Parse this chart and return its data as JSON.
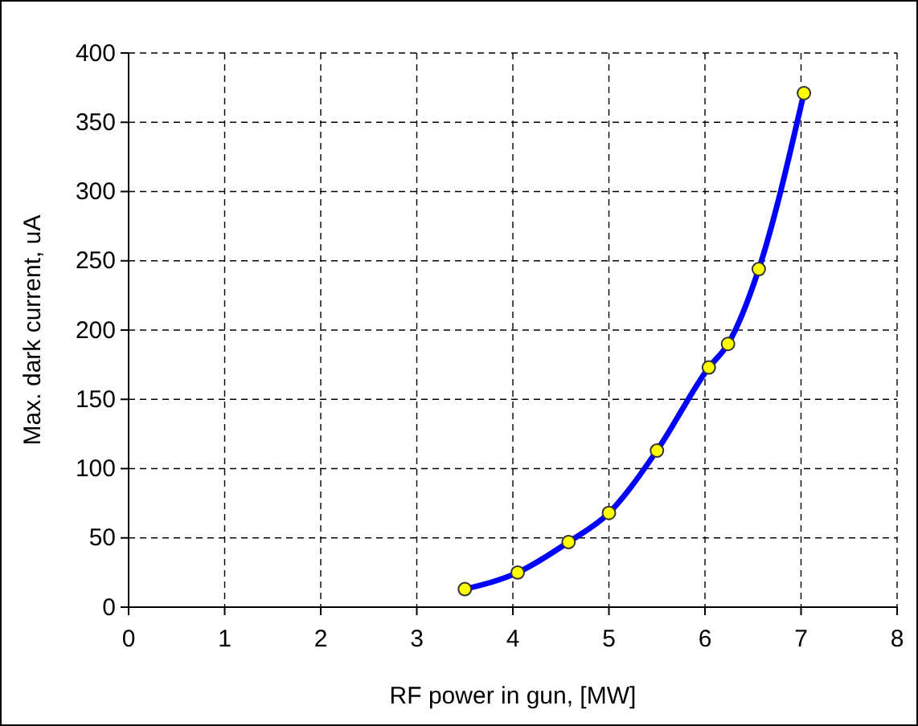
{
  "chart_data": {
    "type": "line",
    "xlabel": "RF power in gun, [MW]",
    "ylabel": "Max. dark current, uA",
    "x": [
      3.5,
      4.05,
      4.58,
      5.0,
      5.5,
      6.04,
      6.24,
      6.56,
      7.03
    ],
    "series": [
      {
        "color": "#0000ff",
        "values": [
          13,
          25,
          47,
          68,
          113,
          173,
          190,
          244,
          371
        ]
      }
    ],
    "xlim": [
      0,
      8
    ],
    "xticks": [
      0,
      1,
      2,
      3,
      4,
      5,
      6,
      7,
      8
    ],
    "ylim": [
      0,
      400
    ],
    "yticks": [
      0,
      50,
      100,
      150,
      200,
      250,
      300,
      350,
      400
    ],
    "grid": true,
    "marker": "circle",
    "line_style": "solid"
  }
}
